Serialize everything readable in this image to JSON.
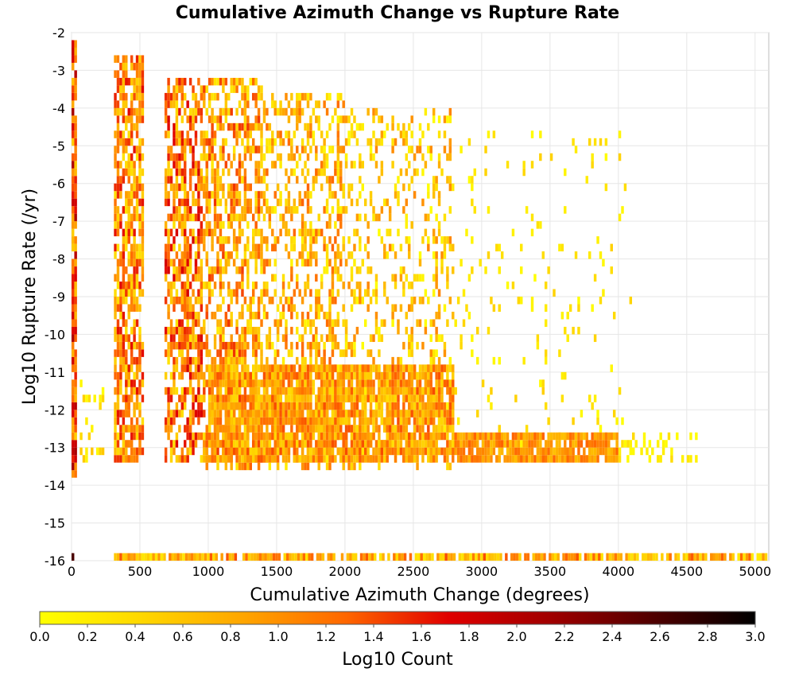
{
  "chart_data": {
    "type": "heatmap",
    "title": "Cumulative Azimuth Change vs Rupture Rate",
    "xlabel": "Cumulative Azimuth Change (degrees)",
    "ylabel": "Log10 Rupture Rate (/yr)",
    "xlim": [
      0,
      5100
    ],
    "ylim": [
      -16,
      -2
    ],
    "x_ticks": [
      "0",
      "500",
      "1000",
      "1500",
      "2000",
      "2500",
      "3000",
      "3500",
      "4000",
      "4500",
      "5000"
    ],
    "y_ticks": [
      "-2",
      "-3",
      "-4",
      "-5",
      "-6",
      "-7",
      "-8",
      "-9",
      "-10",
      "-11",
      "-12",
      "-13",
      "-14",
      "-15",
      "-16"
    ],
    "grid": true,
    "colorbar": {
      "label": "Log10 Count",
      "range": [
        0,
        3
      ],
      "ticks": [
        "0.0",
        "0.2",
        "0.4",
        "0.6",
        "0.8",
        "1.0",
        "1.2",
        "1.4",
        "1.6",
        "1.8",
        "2.0",
        "2.2",
        "2.4",
        "2.6",
        "2.8",
        "3.0"
      ],
      "colormap": [
        "#ffff00",
        "#ffd700",
        "#ffa500",
        "#ff6600",
        "#e00000",
        "#a00000",
        "#500000",
        "#000000"
      ]
    },
    "bin_width_x": 20,
    "bin_height_y": 0.2,
    "regions": [
      {
        "x": [
          0,
          40
        ],
        "y": [
          -13.8,
          -2.2
        ],
        "level": [
          0.5,
          2.1
        ]
      },
      {
        "x": [
          40,
          240
        ],
        "y": [
          -13.4,
          -11.2
        ],
        "level": [
          0.0,
          0.6
        ],
        "density": 0.25
      },
      {
        "x": [
          310,
          520
        ],
        "y": [
          -13.4,
          -2.6
        ],
        "level": [
          0.3,
          1.7
        ],
        "density": 0.7
      },
      {
        "x": [
          680,
          960
        ],
        "y": [
          -13.4,
          -3.2
        ],
        "level": [
          0.3,
          1.8
        ],
        "density": 0.65
      },
      {
        "x": [
          960,
          1400
        ],
        "y": [
          -13.6,
          -3.2
        ],
        "level": [
          0.2,
          1.5
        ],
        "density": 0.55
      },
      {
        "x": [
          1400,
          2000
        ],
        "y": [
          -13.6,
          -3.6
        ],
        "level": [
          0.1,
          1.3
        ],
        "density": 0.4
      },
      {
        "x": [
          2000,
          2800
        ],
        "y": [
          -13.6,
          -4.0
        ],
        "level": [
          0.0,
          1.1
        ],
        "density": 0.25
      },
      {
        "x": [
          2800,
          4100
        ],
        "y": [
          -13.4,
          -4.6
        ],
        "level": [
          0.0,
          0.5
        ],
        "density": 0.05
      },
      {
        "x": [
          1000,
          2800
        ],
        "y": [
          -13.4,
          -10.8
        ],
        "level": [
          0.4,
          1.4
        ],
        "density": 0.85
      },
      {
        "x": [
          2800,
          4000
        ],
        "y": [
          -13.4,
          -12.6
        ],
        "level": [
          0.6,
          1.3
        ],
        "density": 0.85
      },
      {
        "x": [
          4000,
          4600
        ],
        "y": [
          -13.4,
          -12.6
        ],
        "level": [
          0.0,
          0.4
        ],
        "density": 0.35
      },
      {
        "x": [
          310,
          5100
        ],
        "y": [
          -16.0,
          -15.8
        ],
        "level": [
          0.2,
          1.4
        ],
        "density": 0.85
      },
      {
        "x": [
          0,
          20
        ],
        "y": [
          -16.0,
          -15.8
        ],
        "level": [
          2.6,
          2.6
        ],
        "density": 1.0
      }
    ]
  }
}
